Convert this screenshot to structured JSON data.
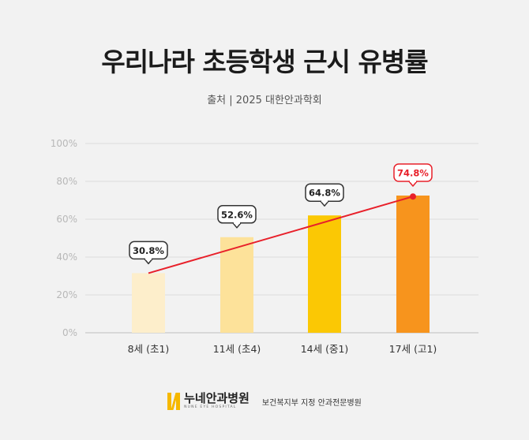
{
  "title": "우리나라 초등학생 근시 유병률",
  "subtitle": "출처 | 2025 대한안과학회",
  "colors": {
    "bar_colors": [
      "#fdeecb",
      "#fde29a",
      "#fbc804",
      "#f7941d"
    ],
    "trend_line": "#e8202a",
    "last_label_text": "#e8202a",
    "grid": "#dcdcdc",
    "background": "#f2f2f2"
  },
  "chart_data": {
    "type": "bar",
    "categories": [
      "8세 (초1)",
      "11세 (초4)",
      "14세 (중1)",
      "17세 (고1)"
    ],
    "values": [
      30.8,
      52.6,
      64.8,
      74.8
    ],
    "data_labels": [
      "30.8%",
      "52.6%",
      "64.8%",
      "74.8%"
    ],
    "bar_heights": [
      31.5,
      50.5,
      62,
      72.5
    ],
    "trend_line": {
      "start": 31.5,
      "end": 72
    },
    "yticks": [
      "0%",
      "20%",
      "40%",
      "60%",
      "80%",
      "100%"
    ],
    "ylim": [
      0,
      100
    ],
    "grid": true
  },
  "footer": {
    "logo_name": "누네안과병원",
    "logo_en": "NUNE EYE HOSPITAL",
    "tagline": "보건복지부 지정 안과전문병원"
  }
}
